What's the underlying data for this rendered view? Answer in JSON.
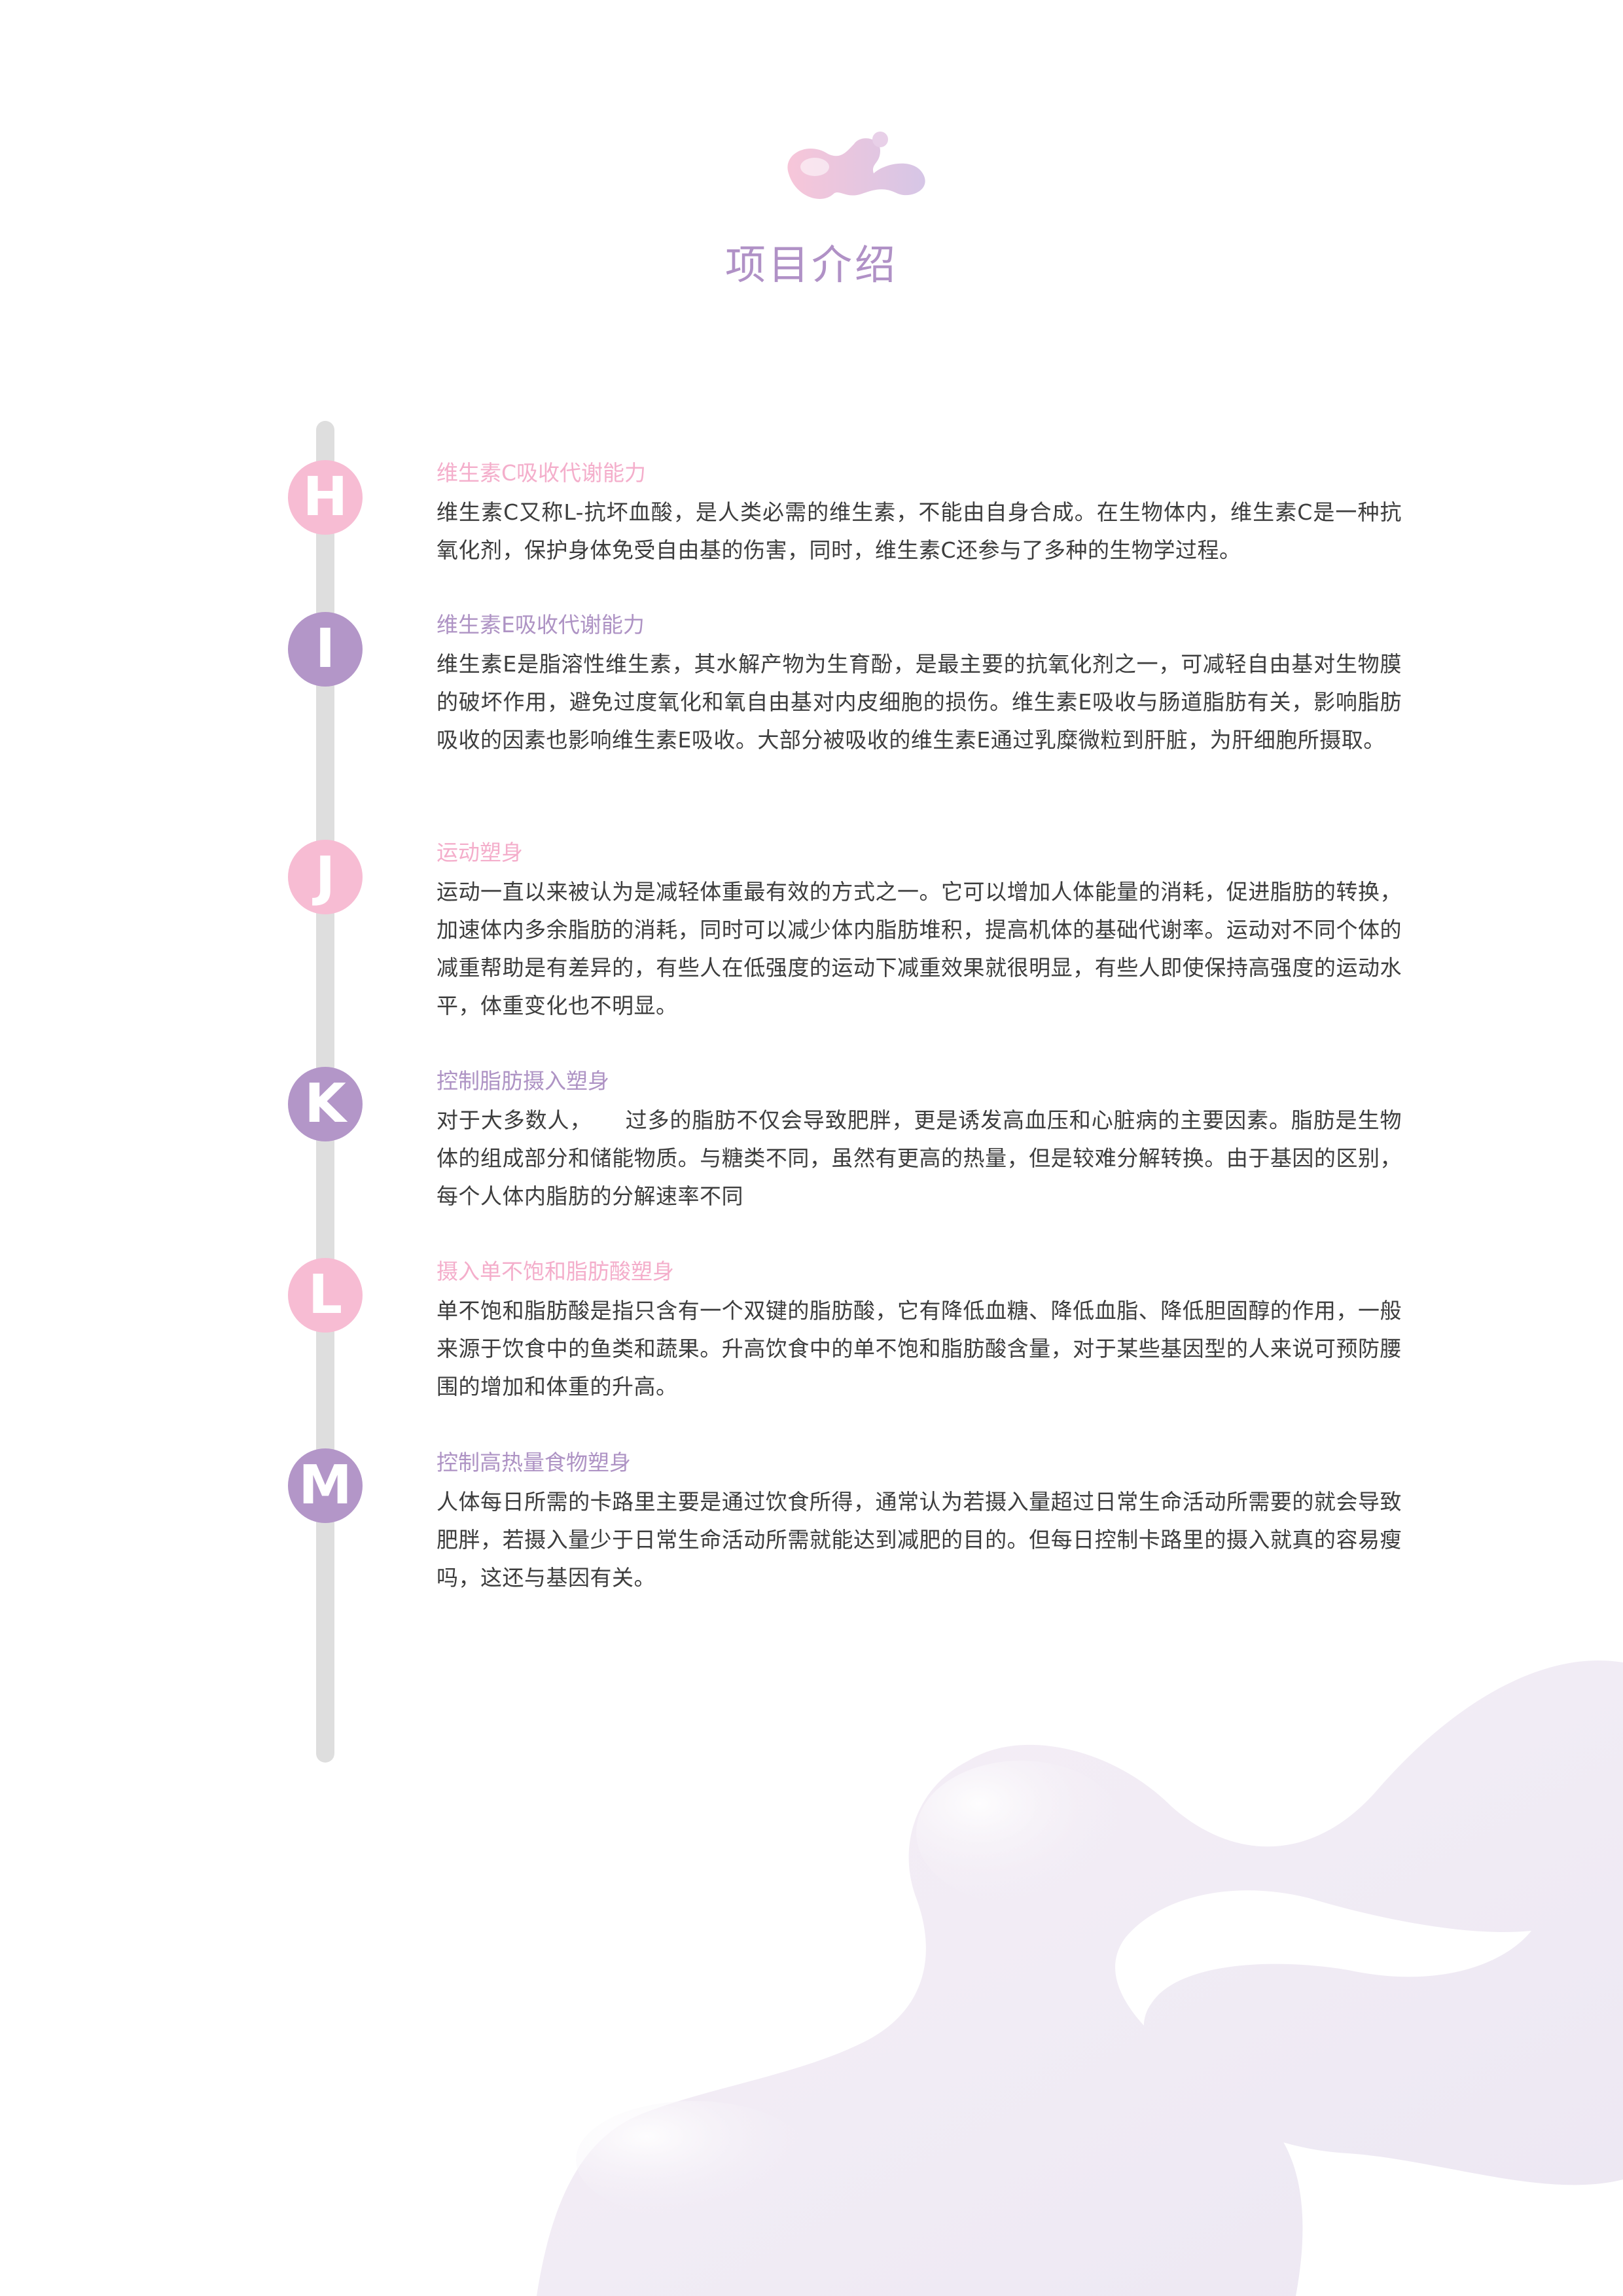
{
  "page": {
    "title": "项目介绍"
  },
  "colors": {
    "pink": "#f7bcd3",
    "purple": "#b396c8",
    "title": "#b091c6",
    "body_text": "#3d3d3d",
    "timeline": "#dedede"
  },
  "sections": [
    {
      "letter": "H",
      "heading": "维生素C吸收代谢能力",
      "body": "维生素C又称L-抗坏血酸，是人类必需的维生素，不能由自身合成。在生物体内，维生素C是一种抗氧化剂，保护身体免受自由基的伤害，同时，维生素C还参与了多种的生物学过程。"
    },
    {
      "letter": "I",
      "heading": "维生素E吸收代谢能力",
      "body": "维生素E是脂溶性维生素，其水解产物为生育酚，是最主要的抗氧化剂之一，可减轻自由基对生物膜的破坏作用，避免过度氧化和氧自由基对内皮细胞的损伤。维生素E吸收与肠道脂肪有关，影响脂肪吸收的因素也影响维生素E吸收。大部分被吸收的维生素E通过乳糜微粒到肝脏，为肝细胞所摄取。"
    },
    {
      "letter": "J",
      "heading": "运动塑身",
      "body": "运动一直以来被认为是减轻体重最有效的方式之一。它可以增加人体能量的消耗，促进脂肪的转换，加速体内多余脂肪的消耗，同时可以减少体内脂肪堆积，提高机体的基础代谢率。运动对不同个体的减重帮助是有差异的，有些人在低强度的运动下减重效果就很明显，有些人即使保持高强度的运动水平，体重变化也不明显。"
    },
    {
      "letter": "K",
      "heading": "控制脂肪摄入塑身",
      "body": "对于大多数人，　　过多的脂肪不仅会导致肥胖，更是诱发高血压和心脏病的主要因素。脂肪是生物体的组成部分和储能物质。与糖类不同，虽然有更高的热量，但是较难分解转换。由于基因的区别，每个人体内脂肪的分解速率不同"
    },
    {
      "letter": "L",
      "heading": "摄入单不饱和脂肪酸塑身",
      "body": "单不饱和脂肪酸是指只含有一个双键的脂肪酸，它有降低血糖、降低血脂、降低胆固醇的作用，一般来源于饮食中的鱼类和蔬果。升高饮食中的单不饱和脂肪酸含量，对于某些基因型的人来说可预防腰围的增加和体重的升高。"
    },
    {
      "letter": "M",
      "heading": "控制高热量食物塑身",
      "body": "人体每日所需的卡路里主要是通过饮食所得，通常认为若摄入量超过日常生命活动所需要的就会导致肥胖，若摄入量少于日常生命活动所需就能达到减肥的目的。但每日控制卡路里的摄入就真的容易瘦吗，这还与基因有关。"
    }
  ]
}
